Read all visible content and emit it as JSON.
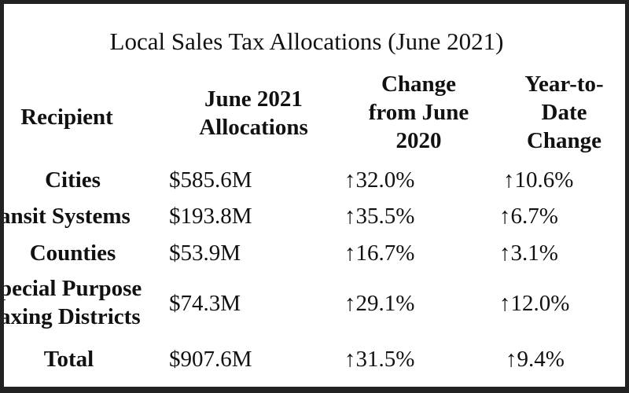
{
  "title": "Local Sales Tax Allocations (June 2021)",
  "headers": {
    "recipient": "Recipient",
    "allocations_line1": "June 2021",
    "allocations_line2": "Allocations",
    "change_line1": "Change",
    "change_line2": "from June",
    "change_line3": "2020",
    "ytd_line1": "Year-to-",
    "ytd_line2": "Date",
    "ytd_line3": "Change"
  },
  "rows": [
    {
      "recipient": "Cities",
      "allocation": "$585.6M",
      "change": "↑32.0%",
      "ytd": "↑10.6%"
    },
    {
      "recipient": "ansit Systems",
      "allocation": "$193.8M",
      "change": "↑35.5%",
      "ytd": "↑6.7%"
    },
    {
      "recipient": "Counties",
      "allocation": "$53.9M",
      "change": "↑16.7%",
      "ytd": "↑3.1%"
    },
    {
      "recipient_line1": "pecial Purpose",
      "recipient_line2": "axing Districts",
      "allocation": "$74.3M",
      "change": "↑29.1%",
      "ytd": "↑12.0%"
    },
    {
      "recipient": "Total",
      "allocation": "$907.6M",
      "change": "↑31.5%",
      "ytd": "↑9.4%"
    }
  ]
}
